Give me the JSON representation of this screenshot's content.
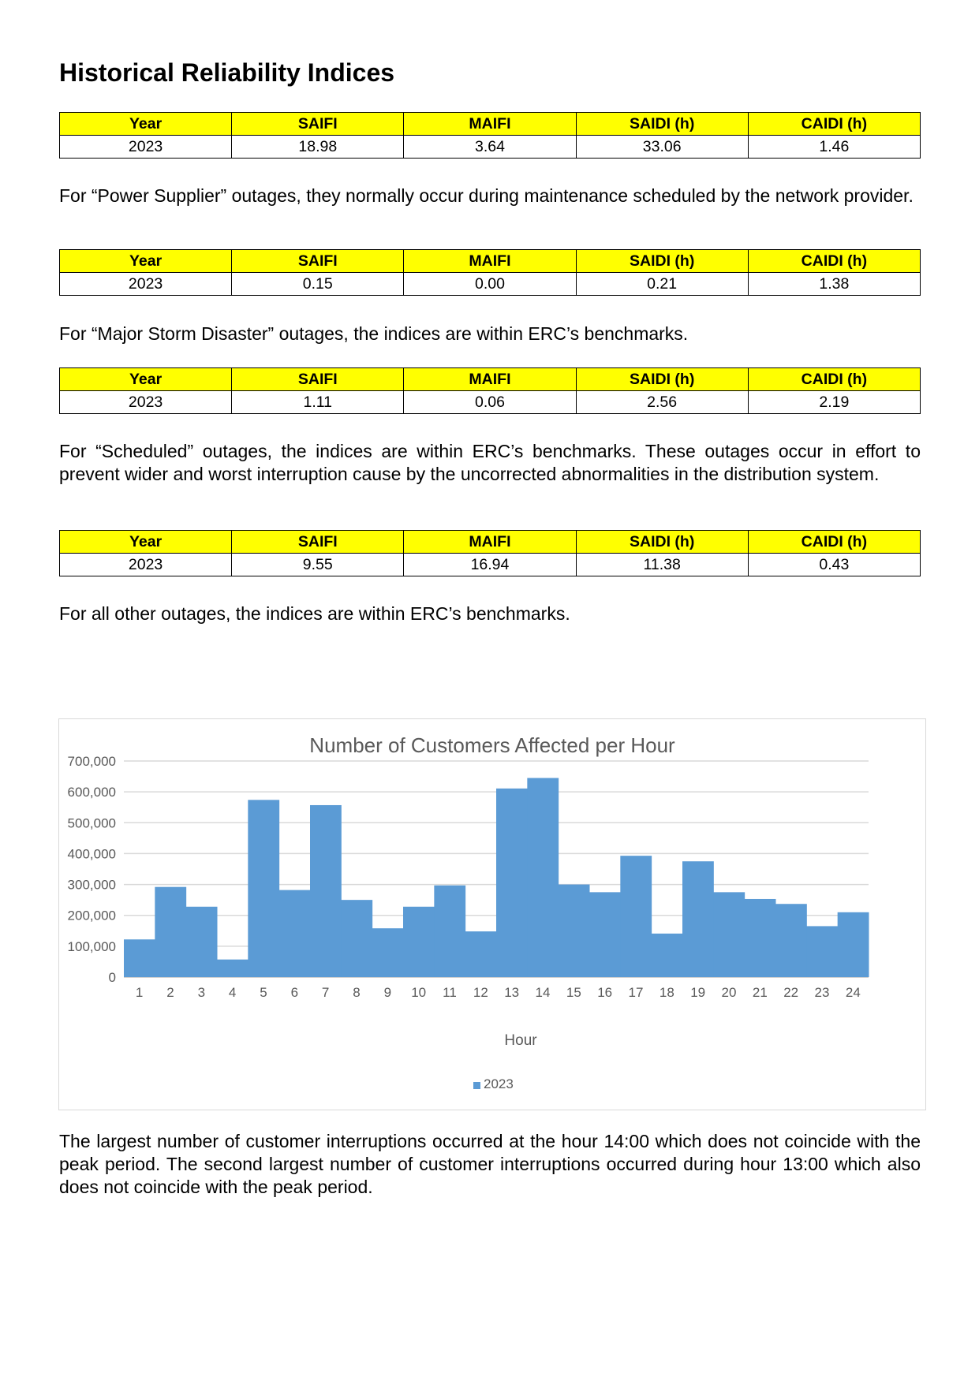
{
  "heading": "Historical Reliability Indices",
  "table_headers": [
    "Year",
    "SAIFI",
    "MAIFI",
    "SAIDI (h)",
    "CAIDI (h)"
  ],
  "tables": [
    {
      "rows": [
        [
          "2023",
          "18.98",
          "3.64",
          "33.06",
          "1.46"
        ]
      ]
    },
    {
      "rows": [
        [
          "2023",
          "0.15",
          "0.00",
          "0.21",
          "1.38"
        ]
      ]
    },
    {
      "rows": [
        [
          "2023",
          "1.11",
          "0.06",
          "2.56",
          "2.19"
        ]
      ]
    },
    {
      "rows": [
        [
          "2023",
          "9.55",
          "16.94",
          "11.38",
          "0.43"
        ]
      ]
    }
  ],
  "paragraphs": {
    "power_supplier": "For “Power Supplier” outages, they normally occur during maintenance scheduled by the network provider.",
    "major_storm": "For “Major Storm Disaster” outages, the indices are within ERC’s benchmarks.",
    "scheduled": "For “Scheduled” outages, the indices are within ERC’s benchmarks. These outages occur in effort to prevent wider and worst interruption cause by the uncorrected abnormalities in the distribution system.",
    "other": "For all other outages, the indices are within ERC’s benchmarks.",
    "conclusion": "The largest number of customer interruptions occurred at the hour 14:00 which does not coincide with the peak period. The second largest number of customer interruptions occurred during hour 13:00 which also does not coincide with the peak period."
  },
  "chart_data": {
    "type": "bar",
    "title": "Number of Customers Affected per Hour",
    "xlabel": "Hour",
    "ylabel": "",
    "categories": [
      "1",
      "2",
      "3",
      "4",
      "5",
      "6",
      "7",
      "8",
      "9",
      "10",
      "11",
      "12",
      "13",
      "14",
      "15",
      "16",
      "17",
      "18",
      "19",
      "20",
      "21",
      "22",
      "23",
      "24"
    ],
    "series": [
      {
        "name": "2023",
        "color": "#5b9bd5",
        "values": [
          122000,
          292000,
          228000,
          57000,
          574000,
          282000,
          557000,
          250000,
          158000,
          228000,
          297000,
          148000,
          611000,
          645000,
          300000,
          275000,
          393000,
          141000,
          375000,
          275000,
          253000,
          237000,
          165000,
          210000
        ]
      }
    ],
    "ylim": [
      0,
      700000
    ],
    "yticks": [
      "0",
      "100,000",
      "200,000",
      "300,000",
      "400,000",
      "500,000",
      "600,000",
      "700,000"
    ],
    "grid": true,
    "legend_position": "bottom"
  }
}
